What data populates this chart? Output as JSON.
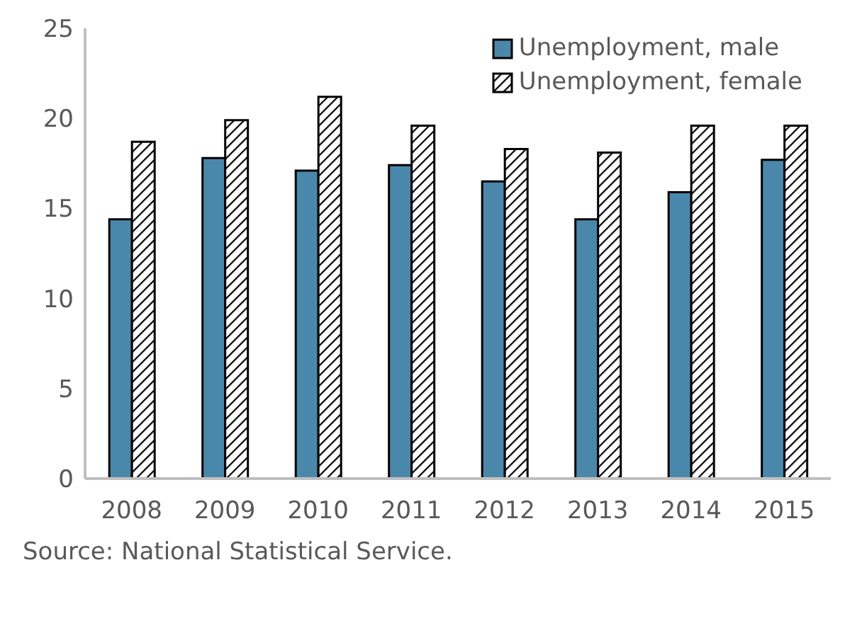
{
  "chart_data": {
    "type": "bar",
    "categories": [
      "2008",
      "2009",
      "2010",
      "2011",
      "2012",
      "2013",
      "2014",
      "2015"
    ],
    "series": [
      {
        "name": "Unemployment, male",
        "color": "#4a88ab",
        "values": [
          14.4,
          17.8,
          17.1,
          17.4,
          16.5,
          14.4,
          15.9,
          17.7
        ]
      },
      {
        "name": "Unemployment, female",
        "color": "#000000",
        "values": [
          18.7,
          19.9,
          21.2,
          19.6,
          18.3,
          18.1,
          19.6,
          19.6
        ]
      }
    ],
    "ylim": [
      0,
      25
    ],
    "yticks": [
      0,
      5,
      10,
      15,
      20,
      25
    ],
    "grid": false,
    "legend": "top right",
    "annotations": [
      "Source: National Statistical Service."
    ]
  }
}
